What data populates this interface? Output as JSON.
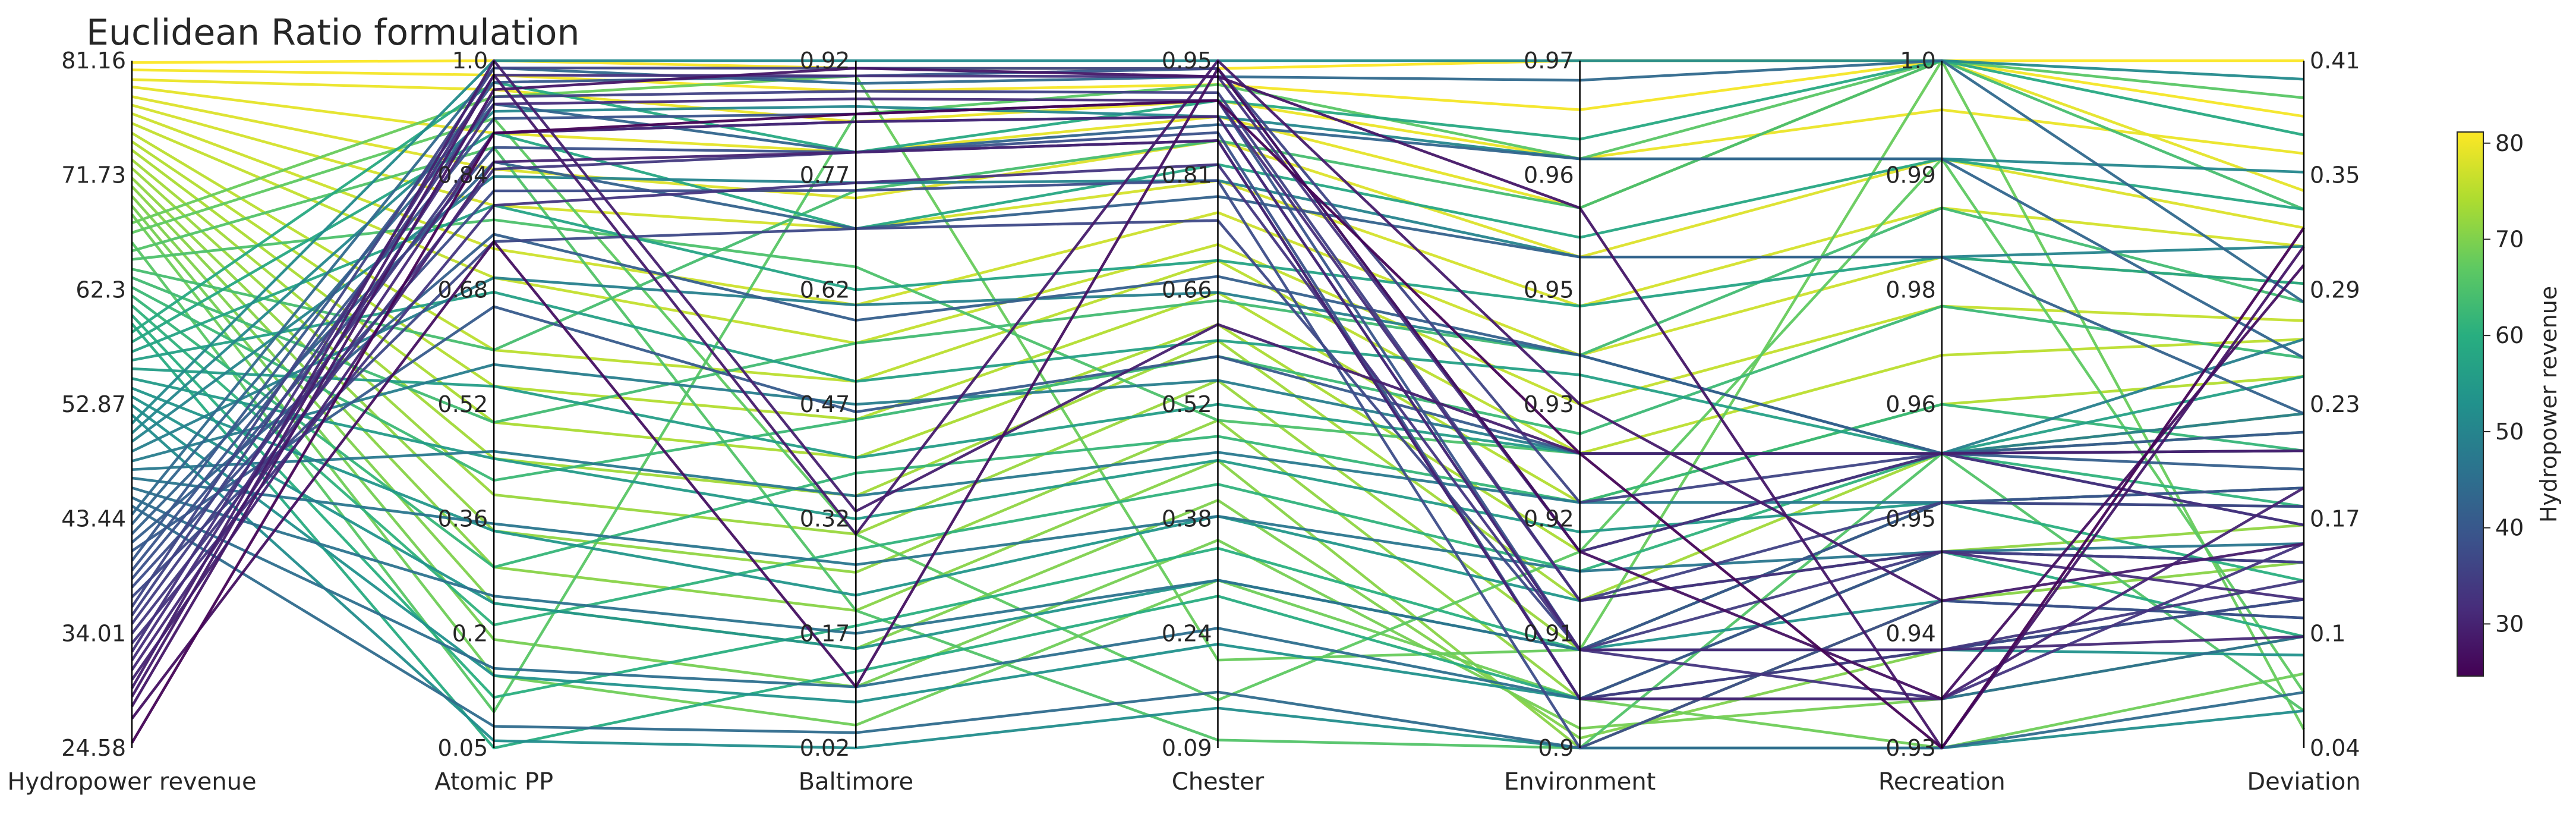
{
  "chart_data": {
    "type": "parallel-coordinates",
    "title": "Euclidean Ratio formulation",
    "color_by": "Hydropower revenue",
    "colormap": "viridis",
    "axes": [
      {
        "name": "Hydropower revenue",
        "ticks": [
          "24.58",
          "34.01",
          "43.44",
          "52.87",
          "62.3",
          "71.73",
          "81.16"
        ],
        "range": [
          24.58,
          81.16
        ],
        "tick_side": "left"
      },
      {
        "name": "Atomic PP",
        "ticks": [
          "0.05",
          "0.2",
          "0.36",
          "0.52",
          "0.68",
          "0.84",
          "1.0"
        ],
        "range": [
          0.05,
          1.0
        ],
        "tick_side": "left"
      },
      {
        "name": "Baltimore",
        "ticks": [
          "0.02",
          "0.17",
          "0.32",
          "0.47",
          "0.62",
          "0.77",
          "0.92"
        ],
        "range": [
          0.02,
          0.92
        ],
        "tick_side": "left"
      },
      {
        "name": "Chester",
        "ticks": [
          "0.09",
          "0.24",
          "0.38",
          "0.52",
          "0.66",
          "0.81",
          "0.95"
        ],
        "range": [
          0.09,
          0.95
        ],
        "tick_side": "left"
      },
      {
        "name": "Environment",
        "ticks": [
          "0.9",
          "0.91",
          "0.92",
          "0.93",
          "0.95",
          "0.96",
          "0.97"
        ],
        "range": [
          0.9,
          0.97
        ],
        "tick_side": "left"
      },
      {
        "name": "Recreation",
        "ticks": [
          "0.93",
          "0.94",
          "0.95",
          "0.96",
          "0.98",
          "0.99",
          "1.0"
        ],
        "range": [
          0.93,
          1.0
        ],
        "tick_side": "left"
      },
      {
        "name": "Deviation",
        "ticks": [
          "0.04",
          "0.1",
          "0.17",
          "0.23",
          "0.29",
          "0.35",
          "0.41"
        ],
        "range": [
          0.04,
          0.41
        ],
        "tick_side": "right"
      }
    ],
    "colorbar": {
      "label": "Hydropower revenue",
      "ticks": [
        30,
        40,
        50,
        60,
        70,
        80
      ],
      "range": [
        24.58,
        81.16
      ]
    },
    "solutions": [
      [
        81.0,
        1.0,
        0.91,
        0.94,
        0.97,
        1.0,
        0.41
      ],
      [
        80.4,
        0.98,
        0.88,
        0.92,
        0.965,
        1.0,
        0.38
      ],
      [
        79.6,
        0.96,
        0.84,
        0.9,
        0.96,
        0.995,
        0.36
      ],
      [
        79.0,
        0.9,
        0.8,
        0.88,
        0.955,
        1.0,
        0.34
      ],
      [
        78.2,
        0.85,
        0.74,
        0.85,
        0.95,
        0.99,
        0.32
      ],
      [
        77.5,
        0.8,
        0.7,
        0.8,
        0.945,
        0.985,
        0.31
      ],
      [
        76.8,
        0.74,
        0.6,
        0.76,
        0.94,
        0.98,
        0.29
      ],
      [
        76.0,
        0.7,
        0.55,
        0.72,
        0.935,
        0.975,
        0.27
      ],
      [
        75.2,
        0.6,
        0.5,
        0.7,
        0.93,
        0.97,
        0.26
      ],
      [
        74.5,
        0.55,
        0.45,
        0.66,
        0.925,
        0.965,
        0.24
      ],
      [
        73.8,
        0.5,
        0.4,
        0.62,
        0.92,
        0.96,
        0.22
      ],
      [
        73.0,
        0.45,
        0.35,
        0.6,
        0.915,
        0.96,
        0.2
      ],
      [
        72.3,
        0.4,
        0.3,
        0.55,
        0.91,
        0.955,
        0.18
      ],
      [
        71.5,
        0.35,
        0.25,
        0.5,
        0.905,
        0.95,
        0.16
      ],
      [
        70.8,
        0.3,
        0.2,
        0.45,
        0.9,
        0.945,
        0.14
      ],
      [
        70.0,
        0.25,
        0.15,
        0.4,
        0.901,
        0.94,
        0.12
      ],
      [
        69.2,
        0.2,
        0.1,
        0.35,
        0.902,
        0.935,
        0.1
      ],
      [
        68.5,
        0.15,
        0.05,
        0.3,
        0.905,
        0.93,
        0.08
      ],
      [
        67.8,
        0.95,
        0.9,
        0.2,
        0.91,
        1.0,
        0.05
      ],
      [
        67.0,
        0.92,
        0.3,
        0.15,
        0.92,
        0.99,
        0.07
      ],
      [
        66.2,
        0.1,
        0.85,
        0.92,
        0.96,
        1.0,
        0.39
      ],
      [
        65.5,
        0.88,
        0.2,
        0.1,
        0.9,
        0.96,
        0.06
      ],
      [
        64.8,
        0.78,
        0.65,
        0.5,
        0.93,
        0.96,
        0.21
      ],
      [
        64.0,
        0.6,
        0.75,
        0.85,
        0.955,
        1.0,
        0.33
      ],
      [
        63.3,
        0.5,
        0.55,
        0.65,
        0.94,
        0.985,
        0.28
      ],
      [
        62.5,
        0.42,
        0.45,
        0.58,
        0.932,
        0.975,
        0.25
      ],
      [
        61.8,
        0.3,
        0.38,
        0.48,
        0.925,
        0.965,
        0.2
      ],
      [
        61.0,
        0.22,
        0.28,
        0.42,
        0.918,
        0.96,
        0.17
      ],
      [
        60.2,
        0.12,
        0.18,
        0.34,
        0.91,
        0.955,
        0.13
      ],
      [
        59.5,
        0.05,
        0.12,
        0.28,
        0.905,
        0.95,
        0.1
      ],
      [
        58.8,
        0.97,
        0.8,
        0.9,
        0.962,
        1.0,
        0.37
      ],
      [
        58.0,
        0.9,
        0.7,
        0.82,
        0.952,
        0.99,
        0.33
      ],
      [
        57.2,
        0.8,
        0.62,
        0.7,
        0.945,
        0.98,
        0.29
      ],
      [
        56.5,
        0.68,
        0.5,
        0.6,
        0.938,
        0.96,
        0.24
      ],
      [
        55.8,
        0.55,
        0.4,
        0.52,
        0.93,
        0.96,
        0.2
      ],
      [
        55.0,
        0.45,
        0.32,
        0.45,
        0.922,
        0.955,
        0.17
      ],
      [
        54.2,
        0.35,
        0.22,
        0.38,
        0.915,
        0.95,
        0.14
      ],
      [
        53.5,
        0.25,
        0.15,
        0.3,
        0.91,
        0.945,
        0.11
      ],
      [
        52.8,
        0.15,
        0.08,
        0.22,
        0.905,
        0.94,
        0.09
      ],
      [
        52.0,
        0.06,
        0.02,
        0.14,
        0.9,
        0.93,
        0.06
      ],
      [
        51.3,
        1.0,
        0.92,
        0.95,
        0.97,
        1.0,
        0.4
      ],
      [
        50.5,
        0.93,
        0.86,
        0.88,
        0.96,
        0.99,
        0.35
      ],
      [
        49.8,
        0.84,
        0.76,
        0.8,
        0.95,
        0.98,
        0.31
      ],
      [
        49.0,
        0.7,
        0.6,
        0.66,
        0.94,
        0.96,
        0.26
      ],
      [
        48.2,
        0.58,
        0.47,
        0.55,
        0.93,
        0.96,
        0.22
      ],
      [
        47.5,
        0.46,
        0.35,
        0.46,
        0.925,
        0.955,
        0.18
      ],
      [
        46.8,
        0.36,
        0.26,
        0.38,
        0.918,
        0.95,
        0.15
      ],
      [
        46.0,
        0.26,
        0.17,
        0.3,
        0.91,
        0.94,
        0.12
      ],
      [
        45.2,
        0.16,
        0.1,
        0.24,
        0.905,
        0.935,
        0.1
      ],
      [
        44.5,
        0.08,
        0.04,
        0.16,
        0.9,
        0.93,
        0.07
      ],
      [
        43.8,
        0.99,
        0.89,
        0.93,
        0.968,
        1.0,
        0.28
      ],
      [
        43.0,
        0.94,
        0.8,
        0.87,
        0.96,
        0.99,
        0.25
      ],
      [
        42.2,
        0.86,
        0.7,
        0.78,
        0.95,
        0.98,
        0.22
      ],
      [
        41.5,
        0.76,
        0.58,
        0.68,
        0.94,
        0.96,
        0.19
      ],
      [
        40.8,
        0.66,
        0.46,
        0.58,
        0.93,
        0.96,
        0.16
      ],
      [
        40.0,
        0.97,
        0.9,
        0.94,
        0.92,
        0.96,
        0.21
      ],
      [
        39.2,
        0.92,
        0.85,
        0.9,
        0.91,
        0.955,
        0.18
      ],
      [
        38.5,
        0.88,
        0.8,
        0.86,
        0.905,
        0.95,
        0.14
      ],
      [
        37.8,
        0.82,
        0.75,
        0.8,
        0.9,
        0.945,
        0.11
      ],
      [
        37.0,
        0.75,
        0.7,
        0.75,
        0.91,
        0.94,
        0.12
      ],
      [
        36.2,
        0.99,
        0.91,
        0.94,
        0.925,
        0.96,
        0.2
      ],
      [
        35.5,
        0.95,
        0.88,
        0.91,
        0.915,
        0.955,
        0.17
      ],
      [
        34.8,
        0.9,
        0.84,
        0.88,
        0.91,
        0.95,
        0.14
      ],
      [
        34.0,
        0.85,
        0.8,
        0.85,
        0.905,
        0.94,
        0.13
      ],
      [
        33.2,
        0.8,
        0.76,
        0.82,
        0.91,
        0.935,
        0.15
      ],
      [
        32.5,
        0.98,
        0.9,
        0.93,
        0.92,
        0.96,
        0.16
      ],
      [
        31.8,
        0.94,
        0.87,
        0.9,
        0.915,
        0.95,
        0.12
      ],
      [
        31.0,
        0.9,
        0.84,
        0.88,
        0.91,
        0.94,
        0.1
      ],
      [
        30.2,
        0.86,
        0.8,
        0.85,
        0.905,
        0.935,
        0.18
      ],
      [
        29.5,
        1.0,
        0.33,
        0.62,
        0.93,
        0.96,
        0.2
      ],
      [
        28.8,
        0.98,
        0.3,
        0.95,
        0.935,
        0.945,
        0.15
      ],
      [
        28.0,
        0.96,
        0.91,
        0.93,
        0.955,
        0.93,
        0.31
      ],
      [
        27.0,
        0.75,
        0.1,
        0.94,
        0.92,
        0.935,
        0.3
      ],
      [
        25.0,
        0.9,
        0.85,
        0.9,
        0.93,
        0.93,
        0.32
      ]
    ]
  }
}
